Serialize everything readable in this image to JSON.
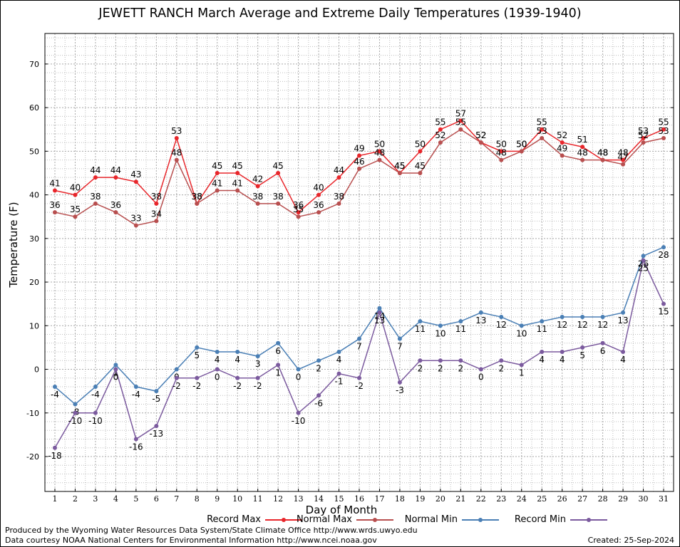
{
  "chart_data": {
    "type": "line",
    "title": "JEWETT RANCH March Average and Extreme Daily Temperatures (1939-1940)",
    "xlabel": "Day of Month",
    "ylabel": "Temperature (F)",
    "x": [
      1,
      2,
      3,
      4,
      5,
      6,
      7,
      8,
      9,
      10,
      11,
      12,
      13,
      14,
      15,
      16,
      17,
      18,
      19,
      20,
      21,
      22,
      23,
      24,
      25,
      26,
      27,
      28,
      29,
      30,
      31
    ],
    "ylim": [
      -28,
      77
    ],
    "yticks": [
      -20,
      -10,
      0,
      10,
      20,
      30,
      40,
      50,
      60,
      70
    ],
    "grid": true,
    "legend_position": "bottom",
    "series": [
      {
        "name": "Record Max",
        "color": "#e8262b",
        "values": [
          41,
          40,
          44,
          44,
          43,
          38,
          53,
          38,
          45,
          45,
          42,
          45,
          36,
          40,
          44,
          49,
          50,
          45,
          50,
          55,
          57,
          52,
          50,
          50,
          55,
          52,
          51,
          48,
          48,
          53,
          55
        ]
      },
      {
        "name": "Normal Max",
        "color": "#b84f4f",
        "values": [
          36,
          35,
          38,
          36,
          33,
          34,
          48,
          38,
          41,
          41,
          38,
          38,
          35,
          36,
          38,
          46,
          48,
          45,
          45,
          52,
          55,
          52,
          48,
          50,
          53,
          49,
          48,
          48,
          47,
          52,
          53
        ]
      },
      {
        "name": "Normal Min",
        "color": "#4a7fb5",
        "values": [
          -4,
          -8,
          -4,
          1,
          -4,
          -5,
          0,
          5,
          4,
          4,
          3,
          6,
          0,
          2,
          4,
          7,
          14,
          7,
          11,
          10,
          11,
          13,
          12,
          10,
          11,
          12,
          12,
          12,
          13,
          26,
          28
        ]
      },
      {
        "name": "Record Min",
        "color": "#7b5a9e",
        "values": [
          -18,
          -10,
          -10,
          0,
          -16,
          -13,
          -2,
          -2,
          0,
          -2,
          -2,
          1,
          -10,
          -6,
          -1,
          -2,
          13,
          -3,
          2,
          2,
          2,
          0,
          2,
          1,
          4,
          4,
          5,
          6,
          4,
          25,
          15
        ]
      }
    ]
  },
  "footer": {
    "credit_line1": "Produced by the Wyoming Water Resources Data System/State Climate Office http://www.wrds.uwyo.edu",
    "credit_line2": "Data courtesy NOAA National Centers for Environmental Information http://www.ncei.noaa.gov",
    "created": "Created:  25-Sep-2024"
  }
}
